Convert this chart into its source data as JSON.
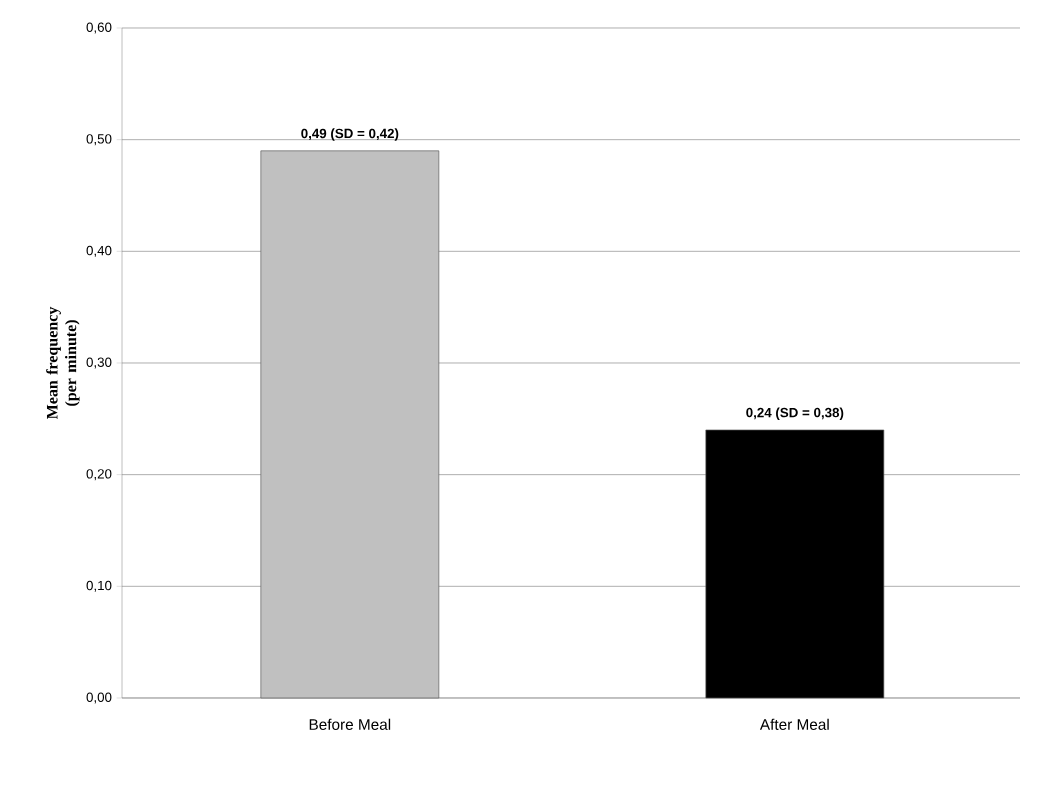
{
  "chart_data": {
    "type": "bar",
    "ylabel": "Mean frequency (per minute)",
    "categories": [
      "Before Meal",
      "After Meal"
    ],
    "values": [
      0.49,
      0.24
    ],
    "colors": [
      "#c0c0c0",
      "#000000"
    ],
    "value_labels": [
      "0,49 (SD = 0,42)",
      "0,24 (SD = 0,38)"
    ],
    "ylim": [
      0,
      0.6
    ],
    "yticks": [
      {
        "value": 0,
        "label": "0,00"
      },
      {
        "value": 0.1,
        "label": "0,10"
      },
      {
        "value": 0.2,
        "label": "0,20"
      },
      {
        "value": 0.3,
        "label": "0,30"
      },
      {
        "value": 0.4,
        "label": "0,40"
      },
      {
        "value": 0.5,
        "label": "0,50"
      },
      {
        "value": 0.6,
        "label": "0,60"
      }
    ],
    "grid": "y"
  }
}
